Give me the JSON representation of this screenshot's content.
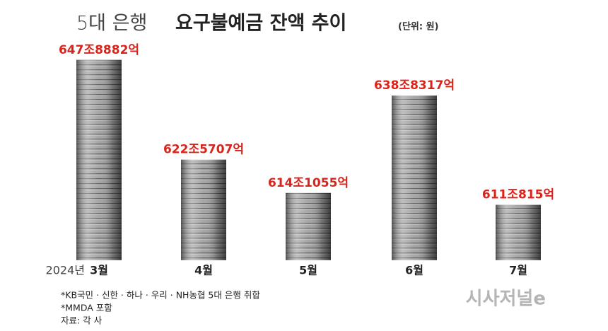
{
  "chart_data": {
    "type": "bar",
    "title_light": "5대 은행",
    "title": "요구불예금 잔액 추이",
    "subtitle": "(단위: 원)",
    "year_label": "2024년",
    "categories": [
      "3월",
      "4월",
      "5월",
      "6월",
      "7월"
    ],
    "values": [
      6478882,
      6225707,
      6141055,
      6388317,
      6110815
    ],
    "value_labels": [
      "647조8882억",
      "622조5707억",
      "614조1055억",
      "638조8317억",
      "611조815억"
    ],
    "ylim": [
      5970000,
      6500000
    ],
    "color": "#9c9c9c",
    "label_color": "#d9241b",
    "notes": [
      "*KB국민 · 신한 · 하나 · 우리 · NH농협 5대 은행 취합",
      "*MMDA 포함",
      "자료: 각 사"
    ],
    "logo": "시사저널e"
  }
}
